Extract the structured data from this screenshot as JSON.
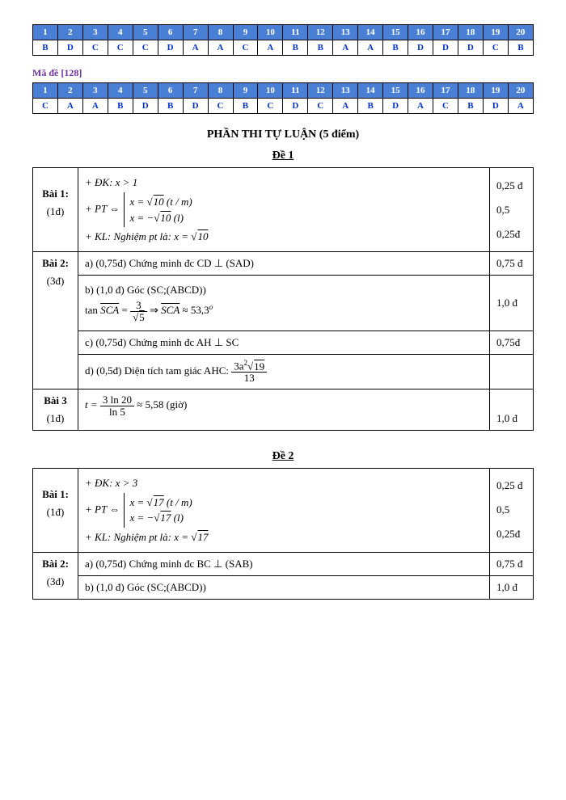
{
  "tables": [
    {
      "headers": [
        "1",
        "2",
        "3",
        "4",
        "5",
        "6",
        "7",
        "8",
        "9",
        "10",
        "11",
        "12",
        "13",
        "14",
        "15",
        "16",
        "17",
        "18",
        "19",
        "20"
      ],
      "answers": [
        "B",
        "D",
        "C",
        "C",
        "C",
        "D",
        "A",
        "A",
        "C",
        "A",
        "B",
        "B",
        "A",
        "A",
        "B",
        "D",
        "D",
        "D",
        "C",
        "B"
      ]
    },
    {
      "headers": [
        "1",
        "2",
        "3",
        "4",
        "5",
        "6",
        "7",
        "8",
        "9",
        "10",
        "11",
        "12",
        "13",
        "14",
        "15",
        "16",
        "17",
        "18",
        "19",
        "20"
      ],
      "answers": [
        "C",
        "A",
        "A",
        "B",
        "D",
        "B",
        "D",
        "C",
        "B",
        "C",
        "D",
        "C",
        "A",
        "B",
        "D",
        "A",
        "C",
        "B",
        "D",
        "A"
      ]
    }
  ],
  "exam_code_label": "Mã đề [128]",
  "section_title": "PHẦN THI TỰ LUẬN (5 điểm)",
  "de1": {
    "title": "Đề 1",
    "b1": {
      "label": "Bài 1:",
      "sub": "(1đ)",
      "dk": "+ ĐK:  x > 1",
      "pt_prefix": "+ PT ⇔ ",
      "pt_row1_a": "x = √",
      "pt_row1_b": "10",
      "pt_row1_c": " (t / m)",
      "pt_row2_a": "x = −√",
      "pt_row2_b": "10",
      "pt_row2_c": " (l)",
      "kl": "+ KL: Nghiệm pt là:  x = √",
      "kl_val": "10",
      "pts1": "0,25 đ",
      "pts2": "0,5",
      "pts3": "0,25đ"
    },
    "b2": {
      "label": "Bài 2:",
      "sub": "(3đ)",
      "a_text": "a) (0,75đ) Chứng minh đc  CD ⊥ (SAD)",
      "a_pts": "0,75 đ",
      "b_text1": "b) (1,0 đ) Góc (SC;(ABCD))",
      "b_tan_lhs": "tan ",
      "b_sca": "SCA",
      "b_eq": " = ",
      "b_frac_num": "3",
      "b_frac_den_sqrt": "5",
      "b_arrow": " ⇒ ",
      "b_approx": " ≈ 53,3",
      "b_deg": "o",
      "b_pts": "1,0 đ",
      "c_text": "c) (0,75đ) Chứng minh đc  AH ⊥ SC",
      "c_pts": "0,75đ",
      "d_text": "d) (0,5đ) Diện tích tam giác AHC:  ",
      "d_num_a": "3a",
      "d_num_sup": "2",
      "d_num_sqrt": "19",
      "d_den": "13",
      "d_pts": ""
    },
    "b3": {
      "label": "Bài 3",
      "sub": "(1đ)",
      "t_eq": "t = ",
      "num": "3 ln 20",
      "den": "ln 5",
      "approx": " ≈ 5,58  (giờ)",
      "pts": "1,0 đ"
    }
  },
  "de2": {
    "title": "Đề 2",
    "b1": {
      "label": "Bài 1:",
      "sub": "(1đ)",
      "dk": "+ ĐK:  x > 3",
      "pt_prefix": "+ PT ⇔ ",
      "pt_row1_a": "x = √",
      "pt_row1_b": "17",
      "pt_row1_c": " (t / m)",
      "pt_row2_a": "x = −√",
      "pt_row2_b": "17",
      "pt_row2_c": " (l)",
      "kl": "+ KL: Nghiệm pt là:  x = √",
      "kl_val": "17",
      "pts1": "0,25 đ",
      "pts2": "0,5",
      "pts3": "0,25đ"
    },
    "b2": {
      "label": "Bài 2:",
      "sub": "(3đ)",
      "a_text": "a) (0,75đ) Chứng minh đc  BC ⊥ (SAB)",
      "a_pts": "0,75 đ",
      "b_text1": "b) (1,0 đ) Góc (SC;(ABCD))",
      "b_pts": "1,0 đ"
    }
  },
  "colors": {
    "header_bg": "#4a7fd6",
    "header_fg": "#ffffff",
    "answer_fg": "#0033cc",
    "exam_code": "#7030a0",
    "border": "#000000"
  }
}
